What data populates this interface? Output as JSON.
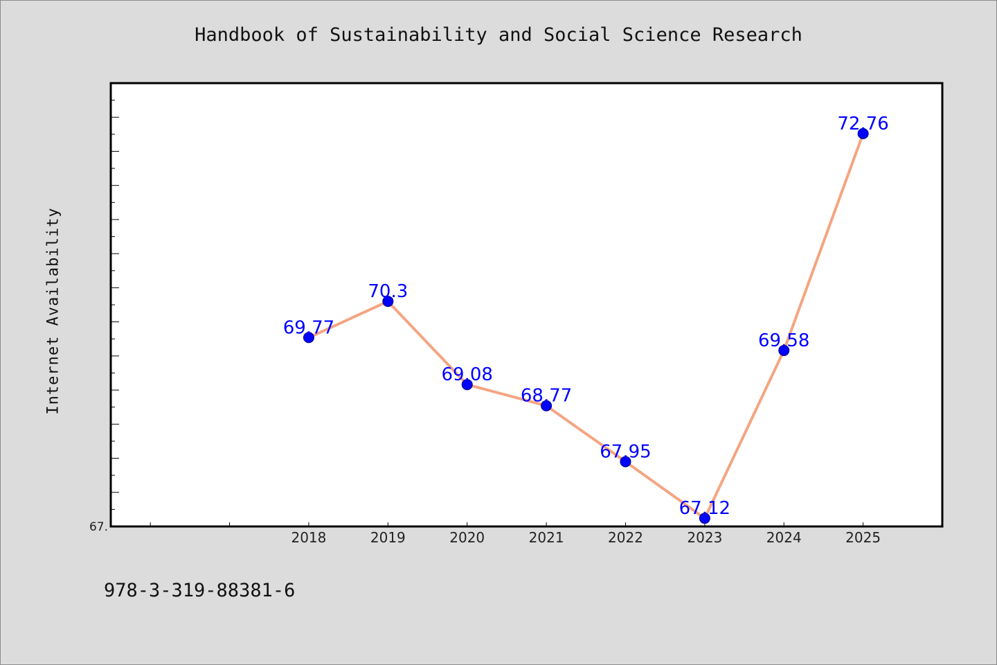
{
  "footnote": "978-3-319-88381-6",
  "colors": {
    "background": "#dcdcdc",
    "plot_background": "#ffffff",
    "line": "#f4a582",
    "marker": "#0000ff",
    "data_label": "#0000ff",
    "axis": "#000000"
  },
  "chart_data": {
    "type": "line",
    "title": "Handbook of Sustainability and Social Science Research",
    "xlabel": "",
    "ylabel": "Internet Availability",
    "categories": [
      "2018",
      "2019",
      "2020",
      "2021",
      "2022",
      "2023",
      "2024",
      "2025"
    ],
    "series": [
      {
        "values": [
          69.77,
          70.3,
          69.08,
          68.77,
          67.95,
          67.12,
          69.58,
          72.76
        ]
      }
    ],
    "data_labels": [
      "69.77",
      "70.3",
      "69.08",
      "68.77",
      "67.95",
      "67.12",
      "69.58",
      "72.76"
    ],
    "y_tick_labels": [
      "67."
    ],
    "ylim": [
      67.0,
      73.5
    ],
    "x_leading_empty_slots": 2,
    "grid": false,
    "legend": "none",
    "markers": "filled-circle"
  }
}
